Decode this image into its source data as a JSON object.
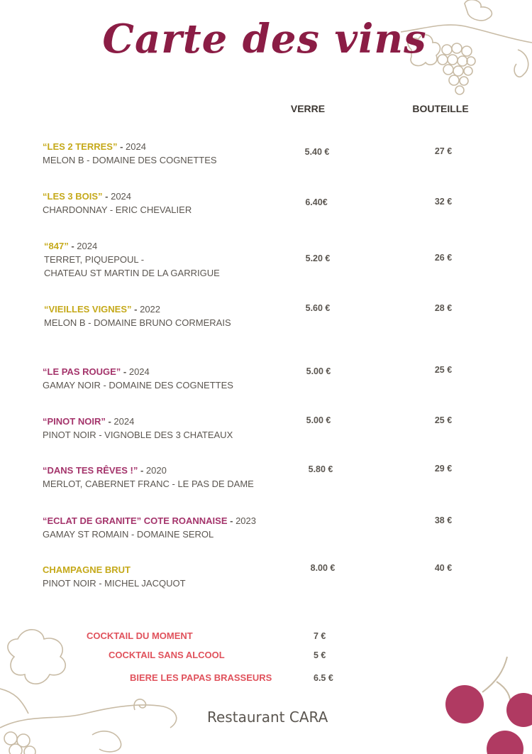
{
  "title": "Carte des vins",
  "headers": {
    "glass": "VERRE",
    "bottle": "BOUTEILLE"
  },
  "colors": {
    "title": "#8b1d45",
    "white_wine": "#c5a91a",
    "red_wine": "#a4346b",
    "drinks": "#e0525c",
    "text": "#5b5650",
    "grapes": "#b03a62"
  },
  "wines": [
    {
      "name": "“LES 2 TERRES”",
      "sep": " - ",
      "year": "2024",
      "details": [
        "MELON B - DOMAINE DES COGNETTES"
      ],
      "glass": "5.40 €",
      "bottle": "27 €",
      "type": "white"
    },
    {
      "name": "“LES 3 BOIS”",
      "sep": " - ",
      "year": "2024",
      "details": [
        "CHARDONNAY - ERIC CHEVALIER"
      ],
      "glass": "6.40€",
      "bottle": "32 €",
      "type": "white"
    },
    {
      "name": "“847”",
      "sep": " - ",
      "year": "2024",
      "details": [
        "TERRET, PIQUEPOUL -",
        "CHATEAU ST MARTIN DE LA GARRIGUE"
      ],
      "glass": "5.20 €",
      "bottle": "26 €",
      "type": "white"
    },
    {
      "name": "“VIEILLES VIGNES”",
      "sep": " - ",
      "year": "2022",
      "details": [
        "MELON B - DOMAINE BRUNO CORMERAIS"
      ],
      "glass": "5.60 €",
      "bottle": "28 €",
      "type": "white"
    },
    {
      "name": "“LE PAS ROUGE”",
      "sep": " - ",
      "year": "2024",
      "details": [
        "GAMAY NOIR - DOMAINE DES COGNETTES"
      ],
      "glass": "5.00 €",
      "bottle": "25 €",
      "type": "red"
    },
    {
      "name": "“PINOT NOIR”",
      "sep": " - ",
      "year": "2024",
      "details": [
        "PINOT NOIR - VIGNOBLE DES 3 CHATEAUX"
      ],
      "glass": "5.00 €",
      "bottle": "25 €",
      "type": "red"
    },
    {
      "name": "“DANS TES RÊVES !”",
      "sep": " - ",
      "year": "2020",
      "details": [
        "MERLOT, CABERNET FRANC - LE PAS DE DAME"
      ],
      "glass": "5.80 €",
      "bottle": "29 €",
      "type": "red"
    },
    {
      "name": "“ECLAT DE GRANITE” COTE ROANNAISE",
      "sep": " - ",
      "year": "2023",
      "details": [
        "GAMAY ST ROMAIN - DOMAINE SEROL"
      ],
      "glass": null,
      "bottle": "38 €",
      "type": "red"
    },
    {
      "name": "CHAMPAGNE BRUT",
      "sep": "",
      "year": "",
      "details": [
        "PINOT NOIR - MICHEL JACQUOT"
      ],
      "glass": "8.00 €",
      "bottle": "40 €",
      "type": "white"
    }
  ],
  "drinks": [
    {
      "name": "COCKTAIL DU MOMENT",
      "price": "7 €"
    },
    {
      "name": "COCKTAIL SANS ALCOOL",
      "price": "5 €"
    },
    {
      "name": "BIERE LES PAPAS BRASSEURS",
      "price": "6.5 €"
    }
  ],
  "footer": "Restaurant CARA"
}
